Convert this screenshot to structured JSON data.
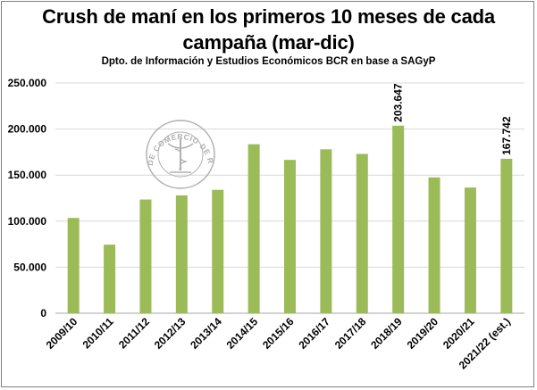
{
  "chart_data": {
    "type": "bar",
    "title_line1": "Crush de maní en los primeros  10 meses de cada",
    "title_line2": "campaña (mar-dic)",
    "subtitle": "Dpto. de Información y Estudios Económicos BCR en base a SAGyP",
    "xlabel": "",
    "ylabel": "",
    "categories": [
      "2009/10",
      "2010/11",
      "2011/12",
      "2012/13",
      "2013/14",
      "2014/15",
      "2015/16",
      "2016/17",
      "2017/18",
      "2018/19",
      "2019/20",
      "2020/21",
      "2021/22 (est.)"
    ],
    "values": [
      103500,
      74500,
      123500,
      128000,
      134000,
      183500,
      166500,
      178000,
      173000,
      203647,
      147500,
      136500,
      167742
    ],
    "data_labels": [
      {
        "category": "2018/19",
        "text": "203.647"
      },
      {
        "category": "2021/22 (est.)",
        "text": "167.742"
      }
    ],
    "ylim": [
      0,
      250000
    ],
    "yticks": [
      {
        "value": 0,
        "label": "0"
      },
      {
        "value": 50000,
        "label": "50.000"
      },
      {
        "value": 100000,
        "label": "100.000"
      },
      {
        "value": 150000,
        "label": "150.000"
      },
      {
        "value": 200000,
        "label": "200.000"
      },
      {
        "value": 250000,
        "label": "250.000"
      }
    ],
    "grid": true,
    "legend": "none",
    "bar_color": "#9bbb59",
    "grid_color": "#d9d9d9"
  },
  "watermark": {
    "icon": "bolsa-de-comercio-seal-icon",
    "text": "BOLSA DE COMERCIO DE ROSARIO",
    "color": "#b0b0b0"
  }
}
